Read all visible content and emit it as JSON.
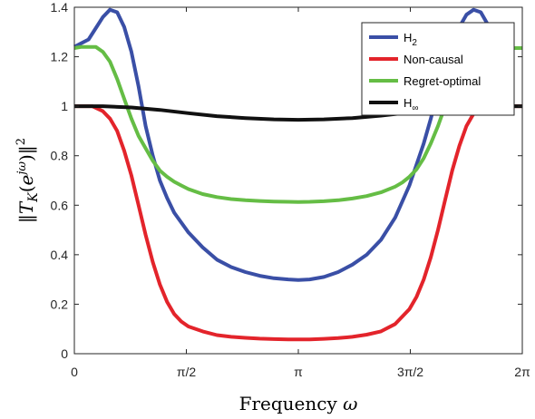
{
  "chart_data": {
    "type": "line",
    "xlabel": "Frequency ω",
    "ylabel": "‖T_K(e^{jω})‖²",
    "xlim": [
      0,
      6.283
    ],
    "ylim": [
      0,
      1.4
    ],
    "x_ticks": [
      0,
      1.5708,
      3.1416,
      4.7124,
      6.2832
    ],
    "x_tick_labels": [
      "0",
      "π/2",
      "π",
      "3π/2",
      "2π"
    ],
    "y_ticks": [
      0,
      0.2,
      0.4,
      0.6,
      0.8,
      1.0,
      1.2,
      1.4
    ],
    "y_tick_labels": [
      "0",
      "0.2",
      "0.4",
      "0.6",
      "0.8",
      "1",
      "1.2",
      "1.4"
    ],
    "grid": false,
    "legend_position": "top-right",
    "series": [
      {
        "name": "H2",
        "name_main": "H",
        "name_sub": "2",
        "color": "#3a4fa6",
        "x": [
          0,
          0.2,
          0.4,
          0.5,
          0.6,
          0.7,
          0.8,
          0.9,
          1.0,
          1.1,
          1.2,
          1.3,
          1.4,
          1.6,
          1.8,
          2.0,
          2.2,
          2.4,
          2.6,
          2.8,
          3.0,
          3.1416,
          3.3,
          3.5,
          3.7,
          3.9,
          4.1,
          4.3,
          4.5,
          4.7,
          4.9,
          5.0,
          5.1,
          5.2,
          5.3,
          5.4,
          5.5,
          5.6,
          5.7,
          5.8,
          5.9,
          6.0,
          6.1,
          6.283
        ],
        "y": [
          1.24,
          1.27,
          1.36,
          1.39,
          1.38,
          1.32,
          1.22,
          1.08,
          0.92,
          0.8,
          0.7,
          0.63,
          0.57,
          0.49,
          0.43,
          0.38,
          0.35,
          0.33,
          0.315,
          0.305,
          0.3,
          0.298,
          0.3,
          0.31,
          0.33,
          0.36,
          0.4,
          0.46,
          0.55,
          0.68,
          0.85,
          0.95,
          1.06,
          1.16,
          1.25,
          1.32,
          1.37,
          1.39,
          1.38,
          1.33,
          1.27,
          1.24,
          1.235,
          1.235
        ]
      },
      {
        "name": "Non-causal",
        "color": "#e3242b",
        "x": [
          0,
          0.25,
          0.4,
          0.5,
          0.6,
          0.7,
          0.8,
          0.9,
          1.0,
          1.1,
          1.2,
          1.3,
          1.4,
          1.5,
          1.6,
          1.8,
          2.0,
          2.2,
          2.4,
          2.6,
          2.8,
          3.0,
          3.1416,
          3.3,
          3.5,
          3.7,
          3.9,
          4.1,
          4.3,
          4.5,
          4.7,
          4.8,
          4.9,
          5.0,
          5.1,
          5.2,
          5.3,
          5.4,
          5.5,
          5.6,
          5.7,
          5.8,
          6.283
        ],
        "y": [
          1.0,
          1.0,
          0.98,
          0.95,
          0.9,
          0.82,
          0.72,
          0.6,
          0.48,
          0.37,
          0.28,
          0.21,
          0.16,
          0.13,
          0.11,
          0.09,
          0.075,
          0.068,
          0.064,
          0.061,
          0.059,
          0.058,
          0.058,
          0.058,
          0.06,
          0.063,
          0.068,
          0.077,
          0.09,
          0.12,
          0.18,
          0.23,
          0.3,
          0.39,
          0.5,
          0.62,
          0.74,
          0.84,
          0.92,
          0.97,
          0.99,
          1.0,
          1.0
        ]
      },
      {
        "name": "Regret-optimal",
        "color": "#65bd45",
        "x": [
          0,
          0.1,
          0.3,
          0.4,
          0.5,
          0.6,
          0.7,
          0.8,
          0.9,
          1.0,
          1.1,
          1.2,
          1.3,
          1.4,
          1.5,
          1.6,
          1.8,
          2.0,
          2.2,
          2.4,
          2.6,
          2.8,
          3.0,
          3.1416,
          3.3,
          3.5,
          3.7,
          3.9,
          4.1,
          4.3,
          4.5,
          4.6,
          4.7,
          4.8,
          4.9,
          5.0,
          5.1,
          5.2,
          5.3,
          5.4,
          5.5,
          5.6,
          5.7,
          5.8,
          5.9,
          6.0,
          6.1,
          6.283
        ],
        "y": [
          1.235,
          1.24,
          1.24,
          1.22,
          1.18,
          1.11,
          1.03,
          0.95,
          0.88,
          0.83,
          0.78,
          0.74,
          0.715,
          0.695,
          0.68,
          0.665,
          0.645,
          0.633,
          0.625,
          0.62,
          0.617,
          0.615,
          0.614,
          0.613,
          0.614,
          0.616,
          0.62,
          0.627,
          0.637,
          0.652,
          0.675,
          0.692,
          0.715,
          0.745,
          0.79,
          0.85,
          0.92,
          1.0,
          1.07,
          1.13,
          1.18,
          1.21,
          1.23,
          1.24,
          1.24,
          1.24,
          1.235,
          1.235
        ]
      },
      {
        "name": "H∞",
        "name_main": "H",
        "name_sub": "∞",
        "color": "#111111",
        "x": [
          0,
          0.4,
          0.8,
          1.2,
          1.6,
          2.0,
          2.4,
          2.8,
          3.1416,
          3.5,
          3.9,
          4.3,
          4.7,
          5.1,
          5.5,
          5.9,
          6.283
        ],
        "y": [
          1.0,
          1.0,
          0.995,
          0.985,
          0.972,
          0.96,
          0.952,
          0.947,
          0.945,
          0.947,
          0.952,
          0.962,
          0.975,
          0.988,
          0.996,
          1.0,
          1.0
        ]
      }
    ]
  }
}
